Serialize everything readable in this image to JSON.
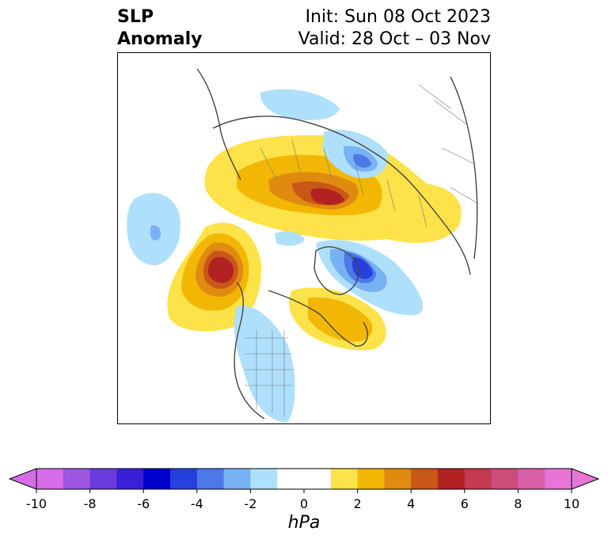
{
  "title": {
    "left_line1": "SLP",
    "left_line2": "Anomaly",
    "right_line1": "Init: Sun 08 Oct 2023",
    "right_line2": "Valid: 28 Oct – 03 Nov"
  },
  "colorbar": {
    "unit": "hPa",
    "ticks": [
      "-10",
      "-8",
      "-6",
      "-4",
      "-2",
      "0",
      "2",
      "4",
      "6",
      "8",
      "10"
    ],
    "colors": [
      "#d66ce8",
      "#9e55e0",
      "#6b3bdc",
      "#3a1fd6",
      "#0000cc",
      "#2540dc",
      "#4d78e8",
      "#78b2f5",
      "#aee0fc",
      "#ffffff",
      "#ffffff",
      "#fde24a",
      "#f2b705",
      "#e08a10",
      "#c95718",
      "#b22222",
      "#c43a50",
      "#cc4c7a",
      "#d860a8",
      "#e874d8"
    ]
  },
  "map": {
    "projection": "north-polar stereographic",
    "shading": {
      "positive": [
        "#fde24a",
        "#f2b705",
        "#e08a10",
        "#c95718",
        "#b22222"
      ],
      "negative": [
        "#aee0fc",
        "#78b2f5",
        "#4d78e8",
        "#2540dc"
      ]
    }
  }
}
